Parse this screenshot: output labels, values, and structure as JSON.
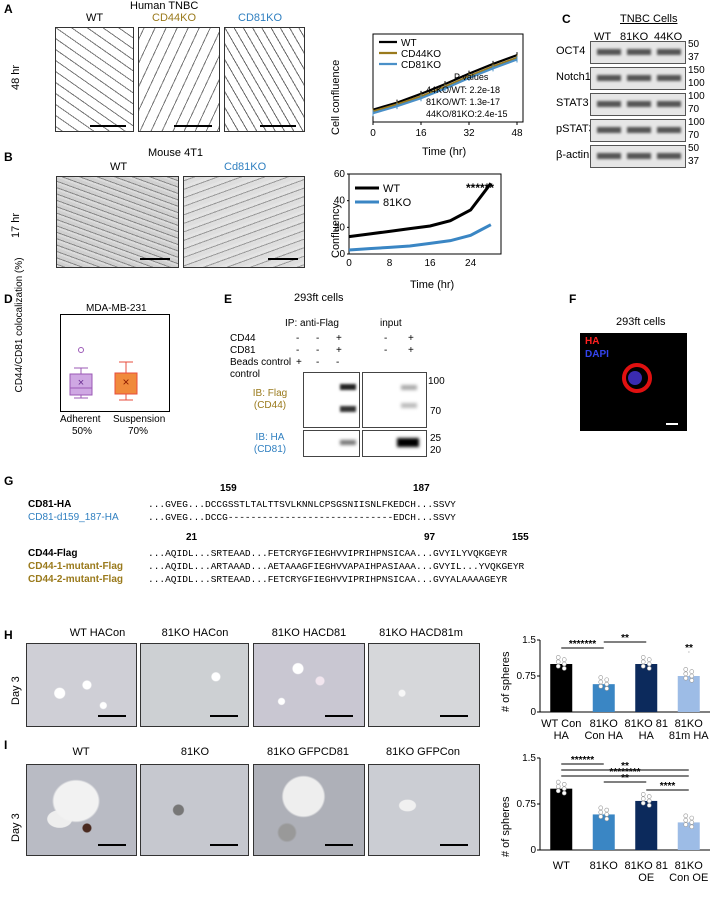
{
  "panelA": {
    "label": "A",
    "title": "Human TNBC",
    "images": [
      "WT",
      "CD44KO",
      "CD81KO"
    ],
    "time": "48 hr",
    "chart": {
      "ylabel": "Cell confluence",
      "xlabel": "Time (hr)",
      "legend": [
        "WT",
        "CD44KO",
        "CD81KO"
      ],
      "pvalues_title": "P values",
      "pvalues": [
        "44KO/WT: 2.2e-18",
        "81KO/WT: 1.3e-17",
        "44KO/81KO:2.4e-15"
      ]
    }
  },
  "panelB": {
    "label": "B",
    "title": "Mouse 4T1",
    "images": [
      "WT",
      "Cd81KO"
    ],
    "time": "17 hr",
    "chart": {
      "ylabel": "Confluency",
      "xlabel": "Time (hr)",
      "legend": [
        "WT",
        "81KO"
      ],
      "stars": "******"
    }
  },
  "panelC": {
    "label": "C",
    "title": "TNBC Cells",
    "cols": [
      "WT",
      "81KO",
      "44KO"
    ],
    "rows": [
      {
        "name": "OCT4",
        "mw": [
          "50",
          "37"
        ]
      },
      {
        "name": "Notch1",
        "mw": [
          "150",
          "100"
        ]
      },
      {
        "name": "STAT3",
        "mw": [
          "100",
          "70"
        ]
      },
      {
        "name": "pSTAT3",
        "mw": [
          "100",
          "70"
        ]
      },
      {
        "name": "β-actin",
        "mw": [
          "50",
          "37"
        ]
      }
    ]
  },
  "panelD": {
    "label": "D",
    "title": "MDA-MB-231",
    "ylabel": "CD44/CD81 colocalization (%)",
    "groups": [
      {
        "name": "Adherent",
        "pct": "50%"
      },
      {
        "name": "Suspension",
        "pct": "70%"
      }
    ]
  },
  "panelE": {
    "label": "E",
    "title": "293ft cells",
    "ip": "IP: anti-Flag",
    "input": "input",
    "rows": [
      {
        "name": "CD44",
        "ip": [
          "-",
          "-",
          "+"
        ],
        "in": [
          "-",
          "+"
        ]
      },
      {
        "name": "CD81",
        "ip": [
          "-",
          "-",
          "+"
        ],
        "in": [
          "-",
          "+"
        ]
      },
      {
        "name": "Beads control",
        "ip": [
          "+",
          "-",
          "-"
        ],
        "in": []
      }
    ],
    "ib1": "IB: Flag (CD44)",
    "ib2": "IB: HA (CD81)",
    "mw1": [
      "100",
      "70"
    ],
    "mw2": [
      "25",
      "20"
    ]
  },
  "panelF": {
    "label": "F",
    "title": "293ft cells",
    "legend": [
      "HA",
      "DAPI"
    ]
  },
  "panelG": {
    "label": "G",
    "num1": [
      "159",
      "187"
    ],
    "cd81": [
      {
        "name": "CD81-HA",
        "seq": "...GVEG...DCCGSSTLTALTTSVLKNNLCPSGSNIISNLFKEDCH...SSVY"
      },
      {
        "name": "CD81-d159_187-HA",
        "seq": "...GVEG...DCCG-----------------------------EDCH...SSVY"
      }
    ],
    "num2": [
      "21",
      "97",
      "155"
    ],
    "cd44": [
      {
        "name": "CD44-Flag",
        "seq": "...AQIDL...SRTEAAD...FETCRYGFIEGHVVIPRIHPNSICAA...GVYILYVQKGEYR"
      },
      {
        "name": "CD44-1-mutant-Flag",
        "seq": "...AQIDL...ARTAAAD...AETAAAGFIEGHVVAPAIHPASIAAA...GVYIL...YVQKGEYR"
      },
      {
        "name": "CD44-2-mutant-Flag",
        "seq": "...AQIDL...SRTEAAD...FETCRYGFIEGHVVIPRIHPNSICAA...GVYALAAAAGEYR"
      }
    ]
  },
  "panelH": {
    "label": "H",
    "day": "Day 3",
    "images": [
      "WT HACon",
      "81KO HACon",
      "81KO HACD81",
      "81KO HACD81m"
    ],
    "chart": {
      "ylabel": "# of spheres",
      "categories": [
        "WT Con HA",
        "81KO Con HA",
        "81KO 81 HA",
        "81KO 81m HA"
      ],
      "sig": [
        "*******",
        "**",
        "**"
      ]
    }
  },
  "panelI": {
    "label": "I",
    "day": "Day 3",
    "images": [
      "WT",
      "81KO",
      "81KO GFPCD81",
      "81KO GFPCon"
    ],
    "chart": {
      "ylabel": "# of spheres",
      "categories": [
        "WT",
        "81KO",
        "81KO 81 OE",
        "81KO Con OE"
      ],
      "sig": [
        "******",
        "**",
        "**",
        "********",
        "****"
      ]
    }
  },
  "chart_data": [
    {
      "type": "line",
      "title": "",
      "xlabel": "Time (hr)",
      "ylabel": "Cell confluence",
      "xlim": [
        0,
        50
      ],
      "xticks": [
        0,
        16,
        32,
        48
      ],
      "x": [
        0,
        8,
        16,
        24,
        32,
        40,
        48
      ],
      "series": [
        {
          "name": "WT",
          "color": "#000000",
          "values": [
            0.14,
            0.22,
            0.32,
            0.43,
            0.55,
            0.66,
            0.76
          ]
        },
        {
          "name": "CD44KO",
          "color": "#9a7a1c",
          "values": [
            0.12,
            0.2,
            0.29,
            0.4,
            0.52,
            0.63,
            0.73
          ]
        },
        {
          "name": "CD81KO",
          "color": "#4a90c8",
          "values": [
            0.1,
            0.18,
            0.27,
            0.38,
            0.5,
            0.61,
            0.71
          ]
        }
      ]
    },
    {
      "type": "line",
      "title": "",
      "xlabel": "Time (hr)",
      "ylabel": "Confluency",
      "ylim": [
        0,
        60
      ],
      "yticks": [
        0,
        20,
        40,
        60
      ],
      "xticks": [
        0,
        8,
        16,
        24
      ],
      "x": [
        0,
        4,
        8,
        12,
        16,
        20,
        24,
        26,
        28
      ],
      "series": [
        {
          "name": "WT",
          "color": "#000000",
          "values": [
            13,
            15,
            17,
            19,
            21,
            25,
            33,
            43,
            53
          ]
        },
        {
          "name": "81KO",
          "color": "#3a86c4",
          "values": [
            3,
            4,
            5,
            6,
            8,
            10,
            14,
            18,
            22
          ]
        }
      ]
    },
    {
      "type": "bar",
      "title": "",
      "ylabel": "# of spheres",
      "ylim": [
        0,
        1.5
      ],
      "yticks": [
        0,
        0.75,
        1.5
      ],
      "categories": [
        "WT Con HA",
        "81KO Con HA",
        "81KO 81 HA",
        "81KO 81m HA"
      ],
      "values": [
        1.0,
        0.58,
        1.0,
        0.75
      ],
      "colors": [
        "#000000",
        "#3a86c4",
        "#0c2a5c",
        "#9dbce6"
      ]
    },
    {
      "type": "bar",
      "title": "",
      "ylabel": "# of spheres",
      "ylim": [
        0,
        1.5
      ],
      "yticks": [
        0,
        0.75,
        1.5
      ],
      "categories": [
        "WT",
        "81KO",
        "81KO 81 OE",
        "81KO Con OE"
      ],
      "values": [
        1.0,
        0.58,
        0.8,
        0.45
      ],
      "colors": [
        "#000000",
        "#3a86c4",
        "#0c2a5c",
        "#9dbce6"
      ]
    }
  ]
}
